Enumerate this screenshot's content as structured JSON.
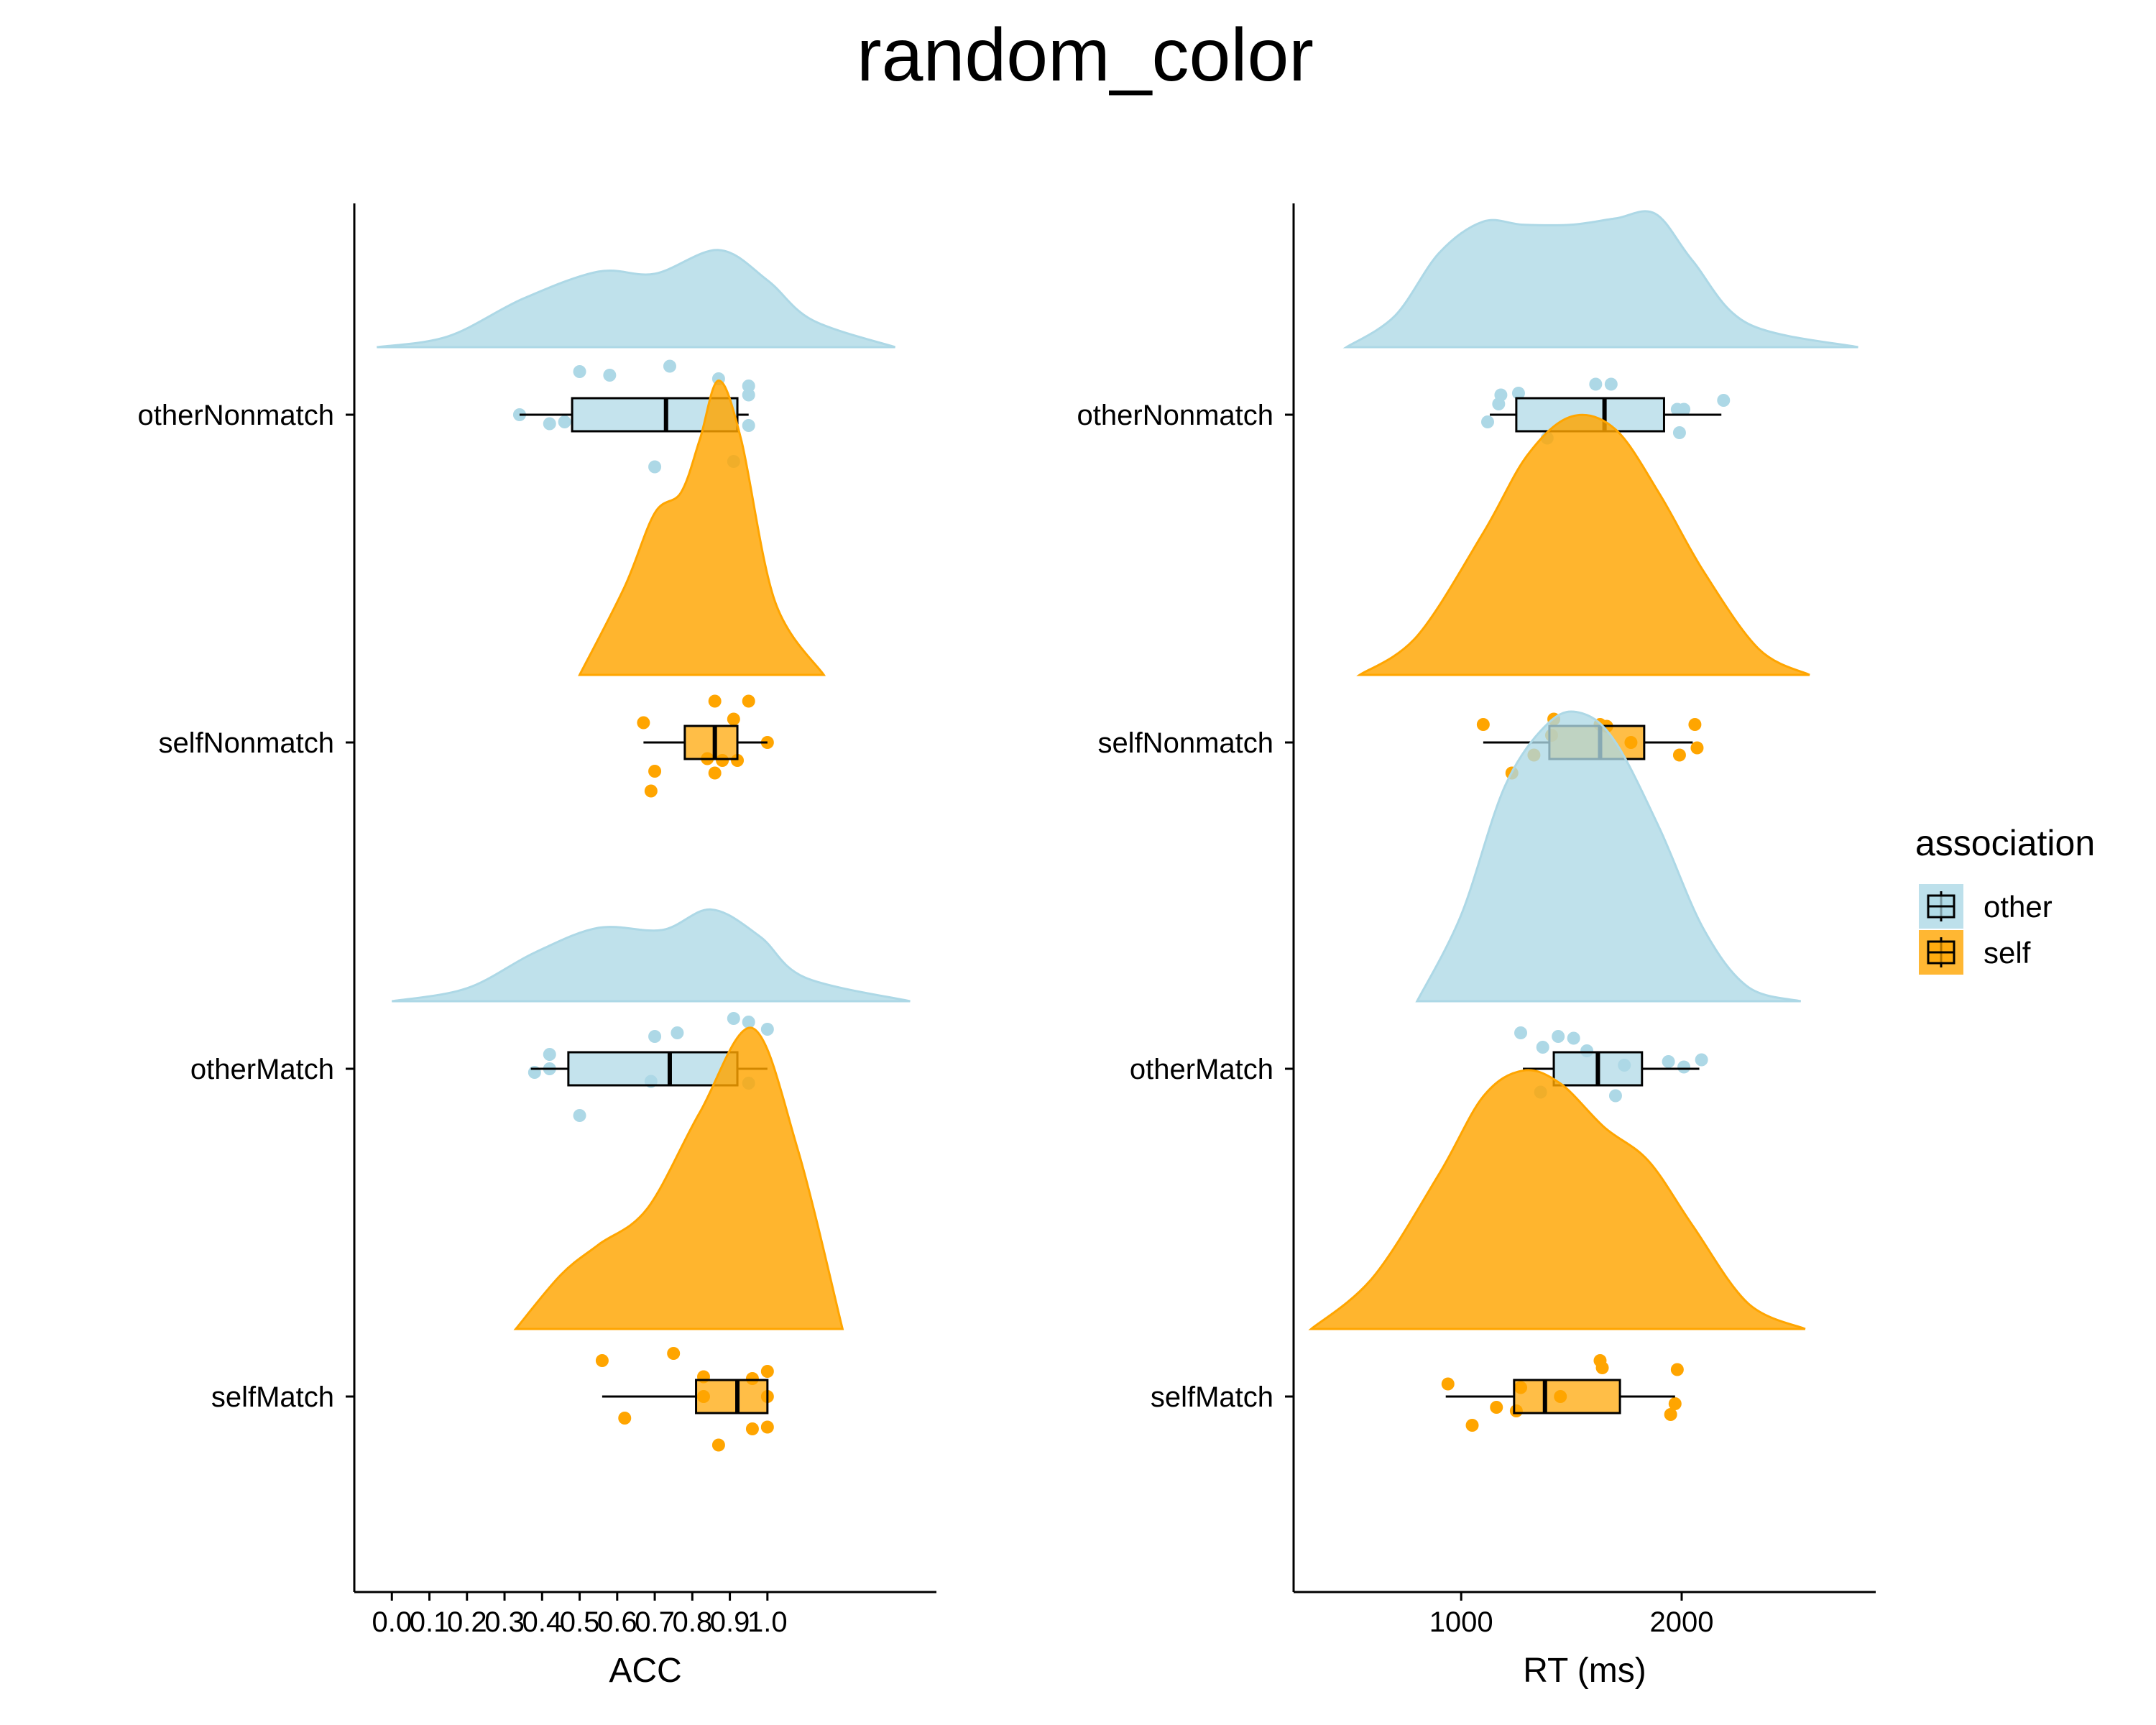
{
  "chart_data": {
    "type": "raincloud",
    "title": "random_color",
    "colors": {
      "other": "#ADD8E6",
      "self": "#FFA500"
    },
    "legend": {
      "title": "association",
      "placement": "right",
      "entries": [
        {
          "key": "other",
          "label": "other"
        },
        {
          "key": "self",
          "label": "self"
        }
      ]
    },
    "categories": [
      "otherNonmatch",
      "selfNonmatch",
      "otherMatch",
      "selfMatch"
    ],
    "category_group": [
      "other",
      "self",
      "other",
      "self"
    ],
    "panels": [
      {
        "xlabel": "ACC",
        "xlim": [
          -0.1,
          1.45
        ],
        "ticks": [
          0.0,
          0.1,
          0.2,
          0.3,
          0.4,
          0.5,
          0.6,
          0.7,
          0.8,
          0.9,
          1.0
        ],
        "tick_labels": [
          "0.0",
          "0.1",
          "0.2",
          "0.3",
          "0.4",
          "0.5",
          "0.6",
          "0.7",
          "0.8",
          "0.9",
          "1.0"
        ],
        "groups": [
          {
            "category": "otherNonmatch",
            "box": {
              "whisker_low": 0.34,
              "q1": 0.48,
              "median": 0.73,
              "q3": 0.92,
              "whisker_high": 0.95
            },
            "points": [
              {
                "x": 0.5,
                "j": 0.24
              },
              {
                "x": 0.58,
                "j": 0.22
              },
              {
                "x": 0.74,
                "j": 0.27
              },
              {
                "x": 0.87,
                "j": 0.2
              },
              {
                "x": 0.95,
                "j": 0.16
              },
              {
                "x": 0.95,
                "j": 0.11
              },
              {
                "x": 0.34,
                "j": 0.0
              },
              {
                "x": 0.42,
                "j": -0.05
              },
              {
                "x": 0.46,
                "j": -0.04
              },
              {
                "x": 0.95,
                "j": -0.06
              },
              {
                "x": 0.91,
                "j": -0.26
              },
              {
                "x": 0.7,
                "j": -0.29
              }
            ],
            "density": [
              [
                -0.04,
                0.0
              ],
              [
                0.15,
                0.1
              ],
              [
                0.35,
                0.45
              ],
              [
                0.55,
                0.7
              ],
              [
                0.7,
                0.68
              ],
              [
                0.87,
                0.9
              ],
              [
                1.0,
                0.62
              ],
              [
                1.12,
                0.25
              ],
              [
                1.34,
                0.0
              ]
            ],
            "density_peak_height": 0.33
          },
          {
            "category": "selfNonmatch",
            "box": {
              "whisker_low": 0.67,
              "q1": 0.78,
              "median": 0.86,
              "q3": 0.92,
              "whisker_high": 1.0
            },
            "points": [
              {
                "x": 0.86,
                "j": 0.23
              },
              {
                "x": 0.95,
                "j": 0.23
              },
              {
                "x": 0.91,
                "j": 0.13
              },
              {
                "x": 0.67,
                "j": 0.11
              },
              {
                "x": 1.0,
                "j": 0.0
              },
              {
                "x": 0.84,
                "j": -0.09
              },
              {
                "x": 0.88,
                "j": -0.1
              },
              {
                "x": 0.92,
                "j": -0.1
              },
              {
                "x": 0.7,
                "j": -0.16
              },
              {
                "x": 0.86,
                "j": -0.17
              },
              {
                "x": 0.69,
                "j": -0.27
              }
            ],
            "density": [
              [
                0.5,
                0.0
              ],
              [
                0.62,
                0.3
              ],
              [
                0.7,
                0.55
              ],
              [
                0.77,
                0.62
              ],
              [
                0.82,
                0.8
              ],
              [
                0.87,
                1.0
              ],
              [
                0.93,
                0.8
              ],
              [
                1.02,
                0.25
              ],
              [
                1.15,
                0.0
              ]
            ],
            "density_peak_height": 0.9
          },
          {
            "category": "otherMatch",
            "box": {
              "whisker_low": 0.37,
              "q1": 0.47,
              "median": 0.74,
              "q3": 0.92,
              "whisker_high": 1.0
            },
            "points": [
              {
                "x": 0.91,
                "j": 0.28
              },
              {
                "x": 0.95,
                "j": 0.26
              },
              {
                "x": 1.0,
                "j": 0.22
              },
              {
                "x": 0.7,
                "j": 0.18
              },
              {
                "x": 0.76,
                "j": 0.2
              },
              {
                "x": 0.42,
                "j": 0.08
              },
              {
                "x": 0.42,
                "j": 0.0
              },
              {
                "x": 0.38,
                "j": -0.02
              },
              {
                "x": 0.69,
                "j": -0.07
              },
              {
                "x": 0.95,
                "j": -0.08
              },
              {
                "x": 0.5,
                "j": -0.26
              }
            ],
            "density": [
              [
                0.0,
                0.0
              ],
              [
                0.2,
                0.12
              ],
              [
                0.38,
                0.45
              ],
              [
                0.55,
                0.68
              ],
              [
                0.72,
                0.66
              ],
              [
                0.85,
                0.85
              ],
              [
                0.98,
                0.6
              ],
              [
                1.1,
                0.22
              ],
              [
                1.38,
                0.0
              ]
            ],
            "density_peak_height": 0.33
          },
          {
            "category": "selfMatch",
            "box": {
              "whisker_low": 0.56,
              "q1": 0.81,
              "median": 0.92,
              "q3": 1.0,
              "whisker_high": 1.0
            },
            "points": [
              {
                "x": 0.75,
                "j": 0.24
              },
              {
                "x": 0.56,
                "j": 0.2
              },
              {
                "x": 1.0,
                "j": 0.14
              },
              {
                "x": 0.83,
                "j": 0.11
              },
              {
                "x": 0.96,
                "j": 0.1
              },
              {
                "x": 0.83,
                "j": 0.0
              },
              {
                "x": 1.0,
                "j": 0.0
              },
              {
                "x": 0.62,
                "j": -0.12
              },
              {
                "x": 0.96,
                "j": -0.18
              },
              {
                "x": 1.0,
                "j": -0.17
              },
              {
                "x": 0.87,
                "j": -0.27
              }
            ],
            "density": [
              [
                0.33,
                0.0
              ],
              [
                0.45,
                0.18
              ],
              [
                0.55,
                0.28
              ],
              [
                0.68,
                0.4
              ],
              [
                0.82,
                0.72
              ],
              [
                0.96,
                1.0
              ],
              [
                1.08,
                0.6
              ],
              [
                1.2,
                0.0
              ]
            ],
            "density_peak_height": 0.92
          }
        ]
      },
      {
        "xlabel": "RT (ms)",
        "xlim": [
          240,
          2880
        ],
        "ticks": [
          1000,
          2000
        ],
        "tick_labels": [
          "1000",
          "2000"
        ],
        "groups": [
          {
            "category": "otherNonmatch",
            "box": {
              "whisker_low": 1130,
              "q1": 1250,
              "median": 1650,
              "q3": 1920,
              "whisker_high": 2180
            },
            "points": [
              {
                "x": 1180,
                "j": 0.11
              },
              {
                "x": 1260,
                "j": 0.12
              },
              {
                "x": 1610,
                "j": 0.17
              },
              {
                "x": 1680,
                "j": 0.17
              },
              {
                "x": 1980,
                "j": 0.03
              },
              {
                "x": 2190,
                "j": 0.08
              },
              {
                "x": 1170,
                "j": 0.06
              },
              {
                "x": 1120,
                "j": -0.04
              },
              {
                "x": 1390,
                "j": -0.13
              },
              {
                "x": 1990,
                "j": -0.1
              },
              {
                "x": 2010,
                "j": 0.03
              }
            ],
            "density": [
              [
                480,
                0.0
              ],
              [
                700,
                0.2
              ],
              [
                900,
                0.6
              ],
              [
                1100,
                0.8
              ],
              [
                1280,
                0.78
              ],
              [
                1500,
                0.78
              ],
              [
                1700,
                0.82
              ],
              [
                1880,
                0.85
              ],
              [
                2050,
                0.55
              ],
              [
                2300,
                0.15
              ],
              [
                2800,
                0.0
              ]
            ],
            "density_peak_height": 0.48
          },
          {
            "category": "selfNonmatch",
            "box": {
              "whisker_low": 1100,
              "q1": 1400,
              "median": 1630,
              "q3": 1830,
              "whisker_high": 2050
            },
            "points": [
              {
                "x": 1100,
                "j": 0.1
              },
              {
                "x": 1420,
                "j": 0.13
              },
              {
                "x": 1630,
                "j": 0.1
              },
              {
                "x": 1660,
                "j": 0.09
              },
              {
                "x": 2060,
                "j": 0.1
              },
              {
                "x": 1410,
                "j": 0.04
              },
              {
                "x": 1770,
                "j": 0.0
              },
              {
                "x": 2070,
                "j": -0.03
              },
              {
                "x": 1330,
                "j": -0.07
              },
              {
                "x": 1990,
                "j": -0.07
              },
              {
                "x": 1230,
                "j": -0.17
              }
            ],
            "density": [
              [
                540,
                0.0
              ],
              [
                800,
                0.15
              ],
              [
                1100,
                0.55
              ],
              [
                1300,
                0.85
              ],
              [
                1500,
                1.0
              ],
              [
                1700,
                0.95
              ],
              [
                1900,
                0.7
              ],
              [
                2100,
                0.4
              ],
              [
                2350,
                0.1
              ],
              [
                2580,
                0.0
              ]
            ],
            "density_peak_height": 0.79
          },
          {
            "category": "otherMatch",
            "box": {
              "whisker_low": 1280,
              "q1": 1420,
              "median": 1620,
              "q3": 1820,
              "whisker_high": 2080
            },
            "points": [
              {
                "x": 1270,
                "j": 0.2
              },
              {
                "x": 1440,
                "j": 0.18
              },
              {
                "x": 1510,
                "j": 0.17
              },
              {
                "x": 1570,
                "j": 0.1
              },
              {
                "x": 1370,
                "j": 0.12
              },
              {
                "x": 1940,
                "j": 0.04
              },
              {
                "x": 2010,
                "j": 0.01
              },
              {
                "x": 2090,
                "j": 0.05
              },
              {
                "x": 1740,
                "j": 0.02
              },
              {
                "x": 1360,
                "j": -0.13
              },
              {
                "x": 1700,
                "j": -0.15
              }
            ],
            "density": [
              [
                800,
                0.0
              ],
              [
                1000,
                0.3
              ],
              [
                1200,
                0.75
              ],
              [
                1400,
                0.97
              ],
              [
                1550,
                1.0
              ],
              [
                1700,
                0.9
              ],
              [
                1900,
                0.6
              ],
              [
                2100,
                0.25
              ],
              [
                2300,
                0.05
              ],
              [
                2540,
                0.0
              ]
            ],
            "density_peak_height": 0.88
          },
          {
            "category": "selfMatch",
            "box": {
              "whisker_low": 930,
              "q1": 1240,
              "median": 1380,
              "q3": 1720,
              "whisker_high": 1970
            },
            "points": [
              {
                "x": 940,
                "j": 0.07
              },
              {
                "x": 1630,
                "j": 0.2
              },
              {
                "x": 1640,
                "j": 0.16
              },
              {
                "x": 1980,
                "j": 0.15
              },
              {
                "x": 1270,
                "j": 0.05
              },
              {
                "x": 1450,
                "j": 0.0
              },
              {
                "x": 1970,
                "j": -0.04
              },
              {
                "x": 1160,
                "j": -0.06
              },
              {
                "x": 1250,
                "j": -0.08
              },
              {
                "x": 1950,
                "j": -0.1
              },
              {
                "x": 1050,
                "j": -0.16
              }
            ],
            "density": [
              [
                320,
                0.0
              ],
              [
                600,
                0.2
              ],
              [
                900,
                0.6
              ],
              [
                1100,
                0.9
              ],
              [
                1280,
                1.0
              ],
              [
                1450,
                0.95
              ],
              [
                1650,
                0.78
              ],
              [
                1850,
                0.65
              ],
              [
                2050,
                0.4
              ],
              [
                2300,
                0.1
              ],
              [
                2560,
                0.0
              ]
            ],
            "density_peak_height": 0.79
          }
        ]
      }
    ]
  }
}
